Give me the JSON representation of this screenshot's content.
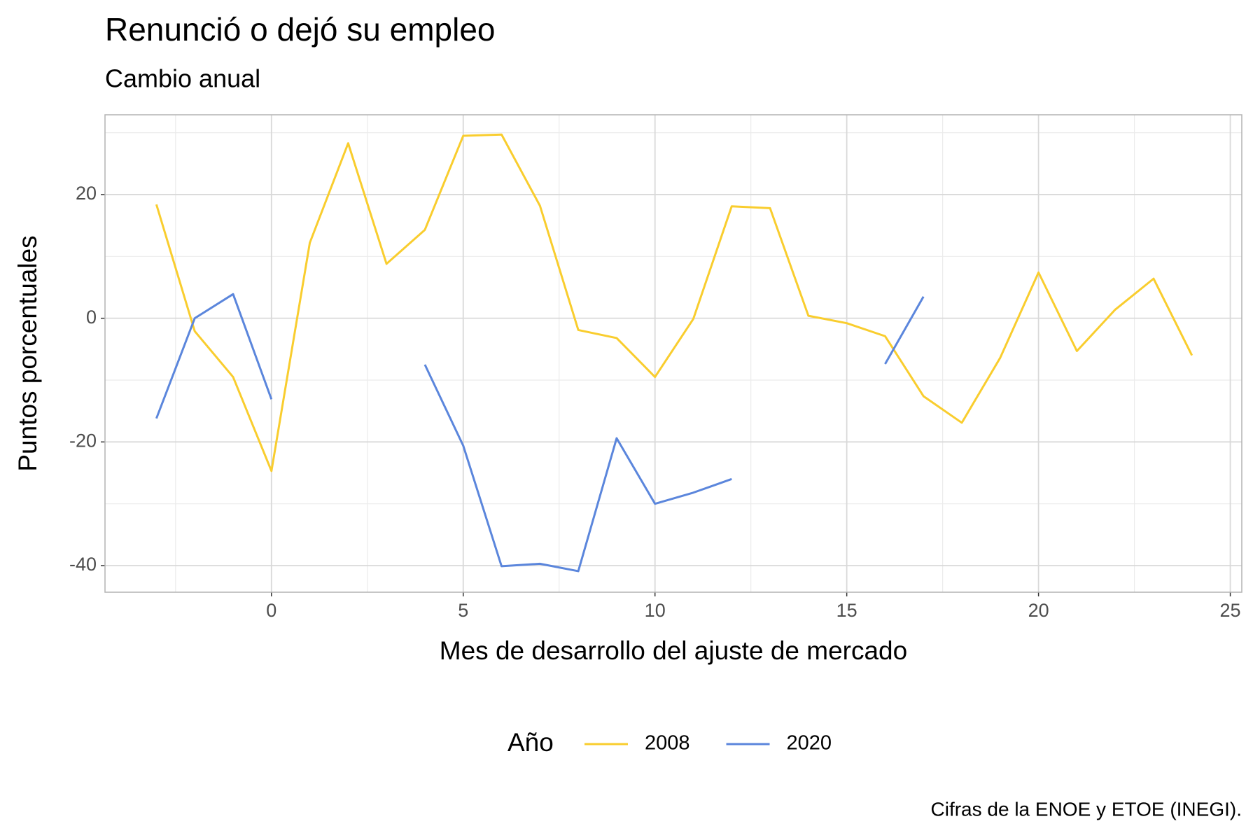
{
  "chart_data": {
    "type": "line",
    "title": "Renunció o dejó su empleo",
    "subtitle": "Cambio anual",
    "x_label": "Mes de desarrollo del ajuste de mercado",
    "y_label": "Puntos porcentuales",
    "legend_title": "Año",
    "caption": "Cifras de la ENOE y ETOE (INEGI).",
    "x": [
      -3,
      -2,
      -1,
      0,
      1,
      2,
      3,
      4,
      5,
      6,
      7,
      8,
      9,
      10,
      11,
      12,
      13,
      14,
      15,
      16,
      17,
      18,
      19,
      20,
      21,
      22,
      23,
      24
    ],
    "series": [
      {
        "name": "2008",
        "color": "#f9cd2e",
        "values": [
          18.4,
          -2.1,
          -9.5,
          -24.7,
          12.2,
          28.3,
          8.8,
          14.3,
          29.5,
          29.7,
          18.2,
          -1.9,
          -3.2,
          -9.5,
          -0.1,
          18.1,
          17.8,
          0.4,
          -0.8,
          -2.9,
          -12.6,
          -16.9,
          -6.4,
          7.4,
          -5.3,
          1.4,
          6.4,
          -6.0
        ]
      },
      {
        "name": "2020",
        "color": "#5b86dc",
        "values": [
          -16.2,
          0,
          3.9,
          -13.1,
          null,
          null,
          null,
          -7.5,
          -20.6,
          -40.1,
          -39.7,
          -40.9,
          -19.4,
          -30.0,
          -28.2,
          -26.0,
          null,
          null,
          null,
          -7.4,
          3.5,
          null,
          null,
          null,
          null,
          null,
          null,
          null
        ]
      }
    ],
    "xlim": [
      -4.34,
      25.3
    ],
    "xticks": [
      0,
      5,
      10,
      15,
      20,
      25
    ],
    "ylim": [
      -44.3,
      32.9
    ],
    "yticks": [
      -40,
      -20,
      0,
      20
    ],
    "grid": true,
    "legend_position": "bottom"
  }
}
